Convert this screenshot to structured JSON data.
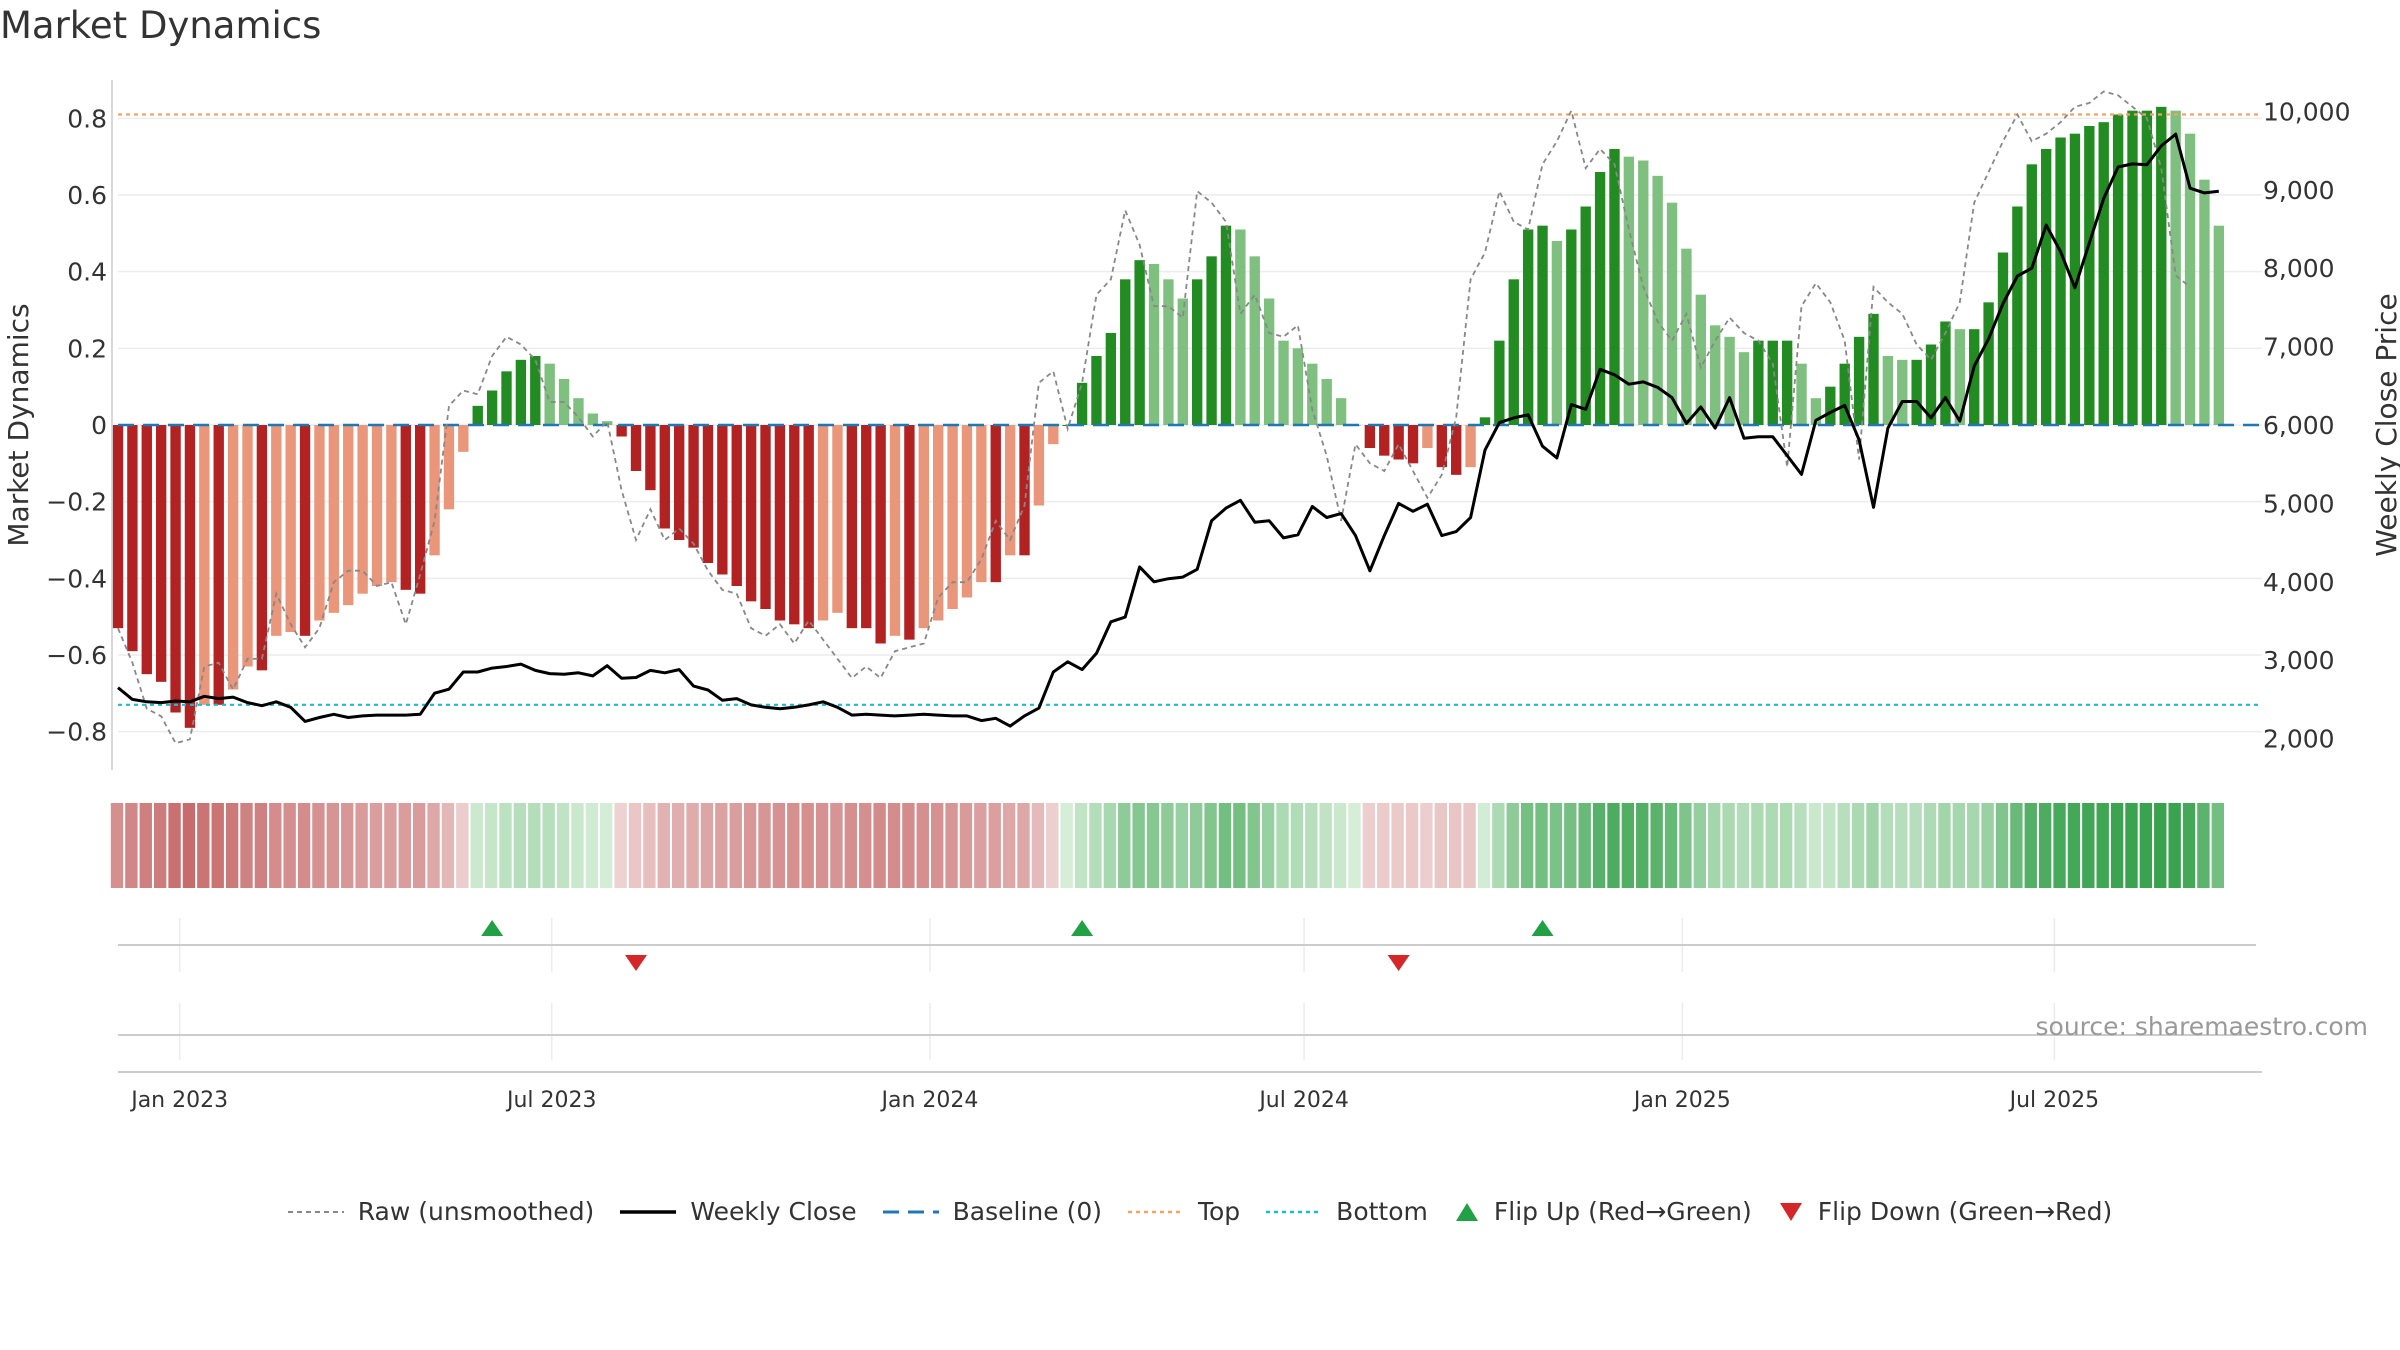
{
  "title": "Market Dynamics",
  "source": "source: sharemaestro.com",
  "legend": {
    "raw": "Raw (unsmoothed)",
    "close": "Weekly Close",
    "baseline": "Baseline (0)",
    "top": "Top",
    "bottom": "Bottom",
    "flip_up": "Flip Up (Red→Green)",
    "flip_down": "Flip Down (Green→Red)"
  },
  "colors": {
    "strong_red": "#b22222",
    "weak_red": "#e9967a",
    "strong_green": "#228b22",
    "weak_green": "#7fbf7f",
    "raw": "#888888",
    "close": "#000000",
    "baseline": "#1f77b4",
    "top": "#f4a460",
    "bottom": "#17becf",
    "flip_up": "#22a045",
    "flip_down": "#d62728"
  },
  "chart_data": {
    "type": "bar",
    "title": "Market Dynamics",
    "ylabel": "Market Dynamics",
    "y2label": "Weekly Close Price",
    "ylim": [
      -0.9,
      0.9
    ],
    "y_ticks": [
      0.8,
      0.6,
      0.4,
      0.2,
      0,
      -0.2,
      -0.4,
      -0.6,
      -0.8
    ],
    "y_tick_labels": [
      "0.8",
      "0.6",
      "0.4",
      "0.2",
      "0",
      "−0.2",
      "−0.4",
      "−0.6",
      "−0.8"
    ],
    "y2lim": [
      1600,
      10400
    ],
    "y2_ticks": [
      2000,
      3000,
      4000,
      5000,
      6000,
      7000,
      8000,
      9000,
      10000
    ],
    "y2_tick_labels": [
      "2,000",
      "3,000",
      "4,000",
      "5,000",
      "6,000",
      "7,000",
      "8,000",
      "9,000",
      "10,000"
    ],
    "x_start": "2022-12-02",
    "x_end": "2025-10-10",
    "x_tick_dates": [
      "2023-01-01",
      "2023-07-01",
      "2024-01-01",
      "2024-07-01",
      "2025-01-01",
      "2025-07-01"
    ],
    "x_tick_labels": [
      "Jan 2023",
      "Jul 2023",
      "Jan 2024",
      "Jul 2024",
      "Jan 2025",
      "Jul 2025"
    ],
    "top_level": 0.81,
    "bottom_level": -0.73,
    "baseline": 0,
    "grid": true,
    "legend_position": "bottom",
    "series": [
      {
        "name": "Market Dynamics",
        "kind": "bars",
        "start": "2022-12-02",
        "interval_days": 7,
        "values": [
          -0.53,
          -0.59,
          -0.65,
          -0.67,
          -0.75,
          -0.79,
          -0.73,
          -0.73,
          -0.69,
          -0.63,
          -0.64,
          -0.55,
          -0.54,
          -0.55,
          -0.51,
          -0.49,
          -0.47,
          -0.44,
          -0.42,
          -0.41,
          -0.43,
          -0.44,
          -0.34,
          -0.22,
          -0.07,
          0.05,
          0.09,
          0.14,
          0.17,
          0.18,
          0.16,
          0.12,
          0.07,
          0.03,
          0.01,
          -0.03,
          -0.12,
          -0.17,
          -0.27,
          -0.3,
          -0.32,
          -0.36,
          -0.39,
          -0.42,
          -0.46,
          -0.48,
          -0.51,
          -0.52,
          -0.53,
          -0.51,
          -0.49,
          -0.53,
          -0.53,
          -0.57,
          -0.55,
          -0.56,
          -0.53,
          -0.51,
          -0.48,
          -0.45,
          -0.41,
          -0.41,
          -0.34,
          -0.34,
          -0.21,
          -0.05,
          0,
          0.11,
          0.18,
          0.24,
          0.38,
          0.43,
          0.42,
          0.38,
          0.33,
          0.38,
          0.44,
          0.52,
          0.51,
          0.44,
          0.33,
          0.22,
          0.2,
          0.16,
          0.12,
          0.07,
          0,
          -0.06,
          -0.08,
          -0.09,
          -0.1,
          -0.06,
          -0.11,
          -0.13,
          -0.11,
          0.02,
          0.22,
          0.38,
          0.51,
          0.52,
          0.48,
          0.51,
          0.57,
          0.66,
          0.72,
          0.7,
          0.69,
          0.65,
          0.58,
          0.46,
          0.34,
          0.26,
          0.23,
          0.19,
          0.22,
          0.22,
          0.22,
          0.16,
          0.07,
          0.1,
          0.16,
          0.23,
          0.29,
          0.18,
          0.17,
          0.17,
          0.21,
          0.27,
          0.25,
          0.25,
          0.32,
          0.45,
          0.57,
          0.68,
          0.72,
          0.75,
          0.76,
          0.78,
          0.79,
          0.81,
          0.82,
          0.82,
          0.83,
          0.82,
          0.76,
          0.64,
          0.52
        ]
      },
      {
        "name": "Raw (unsmoothed)",
        "kind": "line",
        "values": [
          -0.53,
          -0.62,
          -0.74,
          -0.76,
          -0.83,
          -0.82,
          -0.63,
          -0.62,
          -0.69,
          -0.61,
          -0.61,
          -0.44,
          -0.52,
          -0.58,
          -0.53,
          -0.41,
          -0.38,
          -0.38,
          -0.42,
          -0.41,
          -0.52,
          -0.39,
          -0.25,
          0.05,
          0.09,
          0.08,
          0.18,
          0.23,
          0.21,
          0.17,
          0.06,
          0.06,
          0.02,
          -0.03,
          0.01,
          -0.17,
          -0.3,
          -0.22,
          -0.3,
          -0.27,
          -0.31,
          -0.38,
          -0.43,
          -0.44,
          -0.53,
          -0.55,
          -0.52,
          -0.57,
          -0.51,
          -0.56,
          -0.61,
          -0.66,
          -0.63,
          -0.66,
          -0.59,
          -0.58,
          -0.57,
          -0.45,
          -0.41,
          -0.41,
          -0.35,
          -0.25,
          -0.3,
          -0.21,
          0.11,
          0.14,
          -0.01,
          0.11,
          0.34,
          0.38,
          0.56,
          0.47,
          0.31,
          0.31,
          0.28,
          0.61,
          0.58,
          0.53,
          0.29,
          0.34,
          0.24,
          0.23,
          0.26,
          0.04,
          -0.08,
          -0.25,
          -0.05,
          -0.1,
          -0.12,
          -0.05,
          -0.12,
          -0.19,
          -0.13,
          0.02,
          0.38,
          0.45,
          0.61,
          0.53,
          0.51,
          0.68,
          0.74,
          0.82,
          0.67,
          0.72,
          0.68,
          0.51,
          0.36,
          0.27,
          0.22,
          0.29,
          0.15,
          0.22,
          0.28,
          0.24,
          0.22,
          0.16,
          -0.11,
          0.31,
          0.37,
          0.32,
          0.22,
          -0.09,
          0.36,
          0.32,
          0.29,
          0.21,
          0.17,
          0.24,
          0.32,
          0.58,
          0.66,
          0.74,
          0.81,
          0.74,
          0.76,
          0.79,
          0.83,
          0.84,
          0.87,
          0.86,
          0.83,
          0.8,
          0.67,
          0.39,
          0.36
        ]
      },
      {
        "name": "Weekly Close",
        "kind": "line",
        "axis": "right",
        "values": [
          2650,
          2500,
          2470,
          2460,
          2480,
          2470,
          2540,
          2510,
          2530,
          2460,
          2420,
          2470,
          2400,
          2220,
          2270,
          2310,
          2270,
          2290,
          2300,
          2300,
          2300,
          2310,
          2580,
          2630,
          2850,
          2850,
          2900,
          2920,
          2950,
          2870,
          2830,
          2820,
          2840,
          2800,
          2930,
          2770,
          2780,
          2870,
          2840,
          2880,
          2670,
          2620,
          2490,
          2510,
          2430,
          2400,
          2380,
          2400,
          2430,
          2470,
          2400,
          2300,
          2310,
          2300,
          2290,
          2300,
          2310,
          2300,
          2290,
          2290,
          2230,
          2260,
          2160,
          2290,
          2390,
          2850,
          2980,
          2880,
          3090,
          3490,
          3550,
          4190,
          4000,
          4040,
          4060,
          4160,
          4780,
          4940,
          5040,
          4760,
          4780,
          4560,
          4600,
          4960,
          4820,
          4870,
          4590,
          4140,
          4590,
          5000,
          4900,
          4990,
          4590,
          4640,
          4820,
          5680,
          6030,
          6090,
          6130,
          5730,
          5580,
          6260,
          6200,
          6710,
          6640,
          6520,
          6550,
          6480,
          6350,
          6020,
          6230,
          5960,
          6350,
          5830,
          5850,
          5850,
          5610,
          5370,
          6060,
          6160,
          6250,
          5810,
          4950,
          5960,
          6300,
          6300,
          6090,
          6350,
          6050,
          6750,
          7100,
          7550,
          7900,
          8000,
          8550,
          8210,
          7750,
          8320,
          8890,
          9290,
          9330,
          9320,
          9560,
          9710,
          9020,
          8960,
          8980
        ]
      },
      {
        "name": "Flip Up (Red→Green)",
        "kind": "markers",
        "dates": [
          "2023-06-02",
          "2024-03-15",
          "2024-10-25"
        ]
      },
      {
        "name": "Flip Down (Green→Red)",
        "kind": "markers",
        "dates": [
          "2023-08-11",
          "2024-08-16"
        ]
      }
    ]
  }
}
